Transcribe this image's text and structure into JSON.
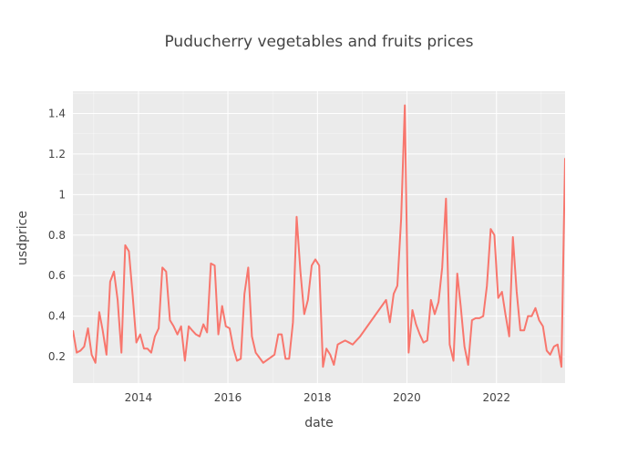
{
  "chart_data": {
    "type": "line",
    "title": "Puducherry vegetables and fruits prices",
    "xlabel": "date",
    "ylabel": "usdprice",
    "x_ticks": [
      "2014",
      "2016",
      "2018",
      "2020",
      "2022"
    ],
    "y_ticks": [
      "0.2",
      "0.4",
      "0.6",
      "0.8",
      "1",
      "1.2",
      "1.4"
    ],
    "xlim": [
      "2012-07-15",
      "2023-07-15"
    ],
    "ylim": [
      0.07,
      1.51
    ],
    "grid": true,
    "background_color": "#ebebeb",
    "line_color": "#f8766d",
    "series": [
      {
        "x": [
          "2012-07-15",
          "2012-08-15",
          "2012-09-15",
          "2012-10-15",
          "2012-11-15",
          "2012-12-15",
          "2013-01-15",
          "2013-02-15",
          "2013-03-15",
          "2013-04-15",
          "2013-05-15",
          "2013-06-15",
          "2013-07-15",
          "2013-08-15",
          "2013-09-15",
          "2013-10-15",
          "2013-11-15",
          "2013-12-15",
          "2014-01-15",
          "2014-02-15",
          "2014-03-15",
          "2014-04-15",
          "2014-05-15",
          "2014-06-15",
          "2014-07-15",
          "2014-08-15",
          "2014-09-15",
          "2014-10-15",
          "2014-11-15",
          "2014-12-15",
          "2015-01-15",
          "2015-02-15",
          "2015-03-15",
          "2015-04-15",
          "2015-05-15",
          "2015-06-15",
          "2015-07-15",
          "2015-08-15",
          "2015-09-15",
          "2015-10-15",
          "2015-11-15",
          "2015-12-15",
          "2016-01-15",
          "2016-02-15",
          "2016-03-15",
          "2016-04-15",
          "2016-05-15",
          "2016-06-15",
          "2016-07-15",
          "2016-08-15",
          "2016-10-15",
          "2017-01-15",
          "2017-02-15",
          "2017-03-15",
          "2017-04-15",
          "2017-05-15",
          "2017-06-15",
          "2017-07-15",
          "2017-08-15",
          "2017-09-15",
          "2017-10-15",
          "2017-11-15",
          "2017-12-15",
          "2018-01-15",
          "2018-02-15",
          "2018-03-15",
          "2018-04-15",
          "2018-05-15",
          "2018-06-15",
          "2018-07-15",
          "2018-08-15",
          "2018-09-15",
          "2018-10-15",
          "2018-12-15",
          "2019-07-15",
          "2019-08-15",
          "2019-09-15",
          "2019-10-15",
          "2019-11-15",
          "2019-12-15",
          "2020-01-15",
          "2020-02-15",
          "2020-03-15",
          "2020-04-15",
          "2020-05-15",
          "2020-06-15",
          "2020-07-15",
          "2020-08-15",
          "2020-09-15",
          "2020-10-15",
          "2020-11-15",
          "2020-12-15",
          "2021-01-15",
          "2021-02-15",
          "2021-03-15",
          "2021-04-15",
          "2021-05-15",
          "2021-06-15",
          "2021-07-15",
          "2021-08-15",
          "2021-09-15",
          "2021-10-15",
          "2021-11-15",
          "2021-12-15",
          "2022-01-15",
          "2022-02-15",
          "2022-03-15",
          "2022-04-15",
          "2022-05-15",
          "2022-06-15",
          "2022-07-15",
          "2022-08-15",
          "2022-09-15",
          "2022-10-15",
          "2022-11-15",
          "2022-12-15",
          "2023-01-15",
          "2023-02-15",
          "2023-03-15",
          "2023-04-15",
          "2023-05-15",
          "2023-06-15",
          "2023-07-15"
        ],
        "y": [
          0.33,
          0.22,
          0.23,
          0.25,
          0.34,
          0.21,
          0.17,
          0.42,
          0.33,
          0.21,
          0.57,
          0.62,
          0.48,
          0.22,
          0.75,
          0.72,
          0.5,
          0.27,
          0.31,
          0.24,
          0.24,
          0.22,
          0.3,
          0.34,
          0.64,
          0.62,
          0.38,
          0.35,
          0.31,
          0.35,
          0.18,
          0.35,
          0.33,
          0.31,
          0.3,
          0.36,
          0.32,
          0.66,
          0.65,
          0.31,
          0.45,
          0.35,
          0.34,
          0.24,
          0.18,
          0.19,
          0.51,
          0.64,
          0.3,
          0.22,
          0.17,
          0.21,
          0.31,
          0.31,
          0.19,
          0.19,
          0.37,
          0.89,
          0.62,
          0.41,
          0.48,
          0.65,
          0.68,
          0.65,
          0.15,
          0.24,
          0.21,
          0.16,
          0.26,
          0.27,
          0.28,
          0.27,
          0.26,
          0.3,
          0.48,
          0.37,
          0.51,
          0.55,
          0.88,
          1.44,
          0.22,
          0.43,
          0.36,
          0.31,
          0.27,
          0.28,
          0.48,
          0.41,
          0.47,
          0.64,
          0.98,
          0.26,
          0.18,
          0.61,
          0.45,
          0.25,
          0.16,
          0.38,
          0.39,
          0.39,
          0.4,
          0.55,
          0.83,
          0.8,
          0.49,
          0.52,
          0.41,
          0.3,
          0.79,
          0.52,
          0.33,
          0.33,
          0.4,
          0.4,
          0.44,
          0.38,
          0.35,
          0.23,
          0.21,
          0.25,
          0.26,
          0.15,
          1.18
        ]
      }
    ]
  }
}
